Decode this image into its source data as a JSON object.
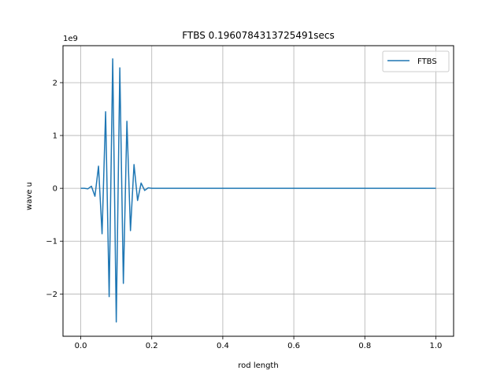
{
  "chart_data": {
    "type": "line",
    "title": "FTBS 0.1960784313725491secs",
    "xlabel": "rod length",
    "ylabel": "wave u",
    "y_offset_text": "1e9",
    "y_scale_factor": 1000000000.0,
    "xlim": [
      -0.05,
      1.05
    ],
    "ylim": [
      -2.8,
      2.7
    ],
    "x_ticks": [
      0.0,
      0.2,
      0.4,
      0.6,
      0.8,
      1.0
    ],
    "x_tick_labels": [
      "0.0",
      "0.2",
      "0.4",
      "0.6",
      "0.8",
      "1.0"
    ],
    "y_ticks": [
      -2,
      -1,
      0,
      1,
      2
    ],
    "y_tick_labels": [
      "−2",
      "−1",
      "0",
      "1",
      "2"
    ],
    "grid": true,
    "legend_position": "top-right",
    "series": [
      {
        "name": "FTBS",
        "color": "#1f77b4",
        "x": [
          0.0,
          0.01,
          0.02,
          0.03,
          0.04,
          0.05,
          0.06,
          0.07,
          0.08,
          0.09,
          0.1,
          0.11,
          0.12,
          0.13,
          0.14,
          0.15,
          0.16,
          0.17,
          0.18,
          0.19,
          0.2,
          1.0
        ],
        "y": [
          0.0,
          0.0,
          -0.01,
          0.04,
          -0.15,
          0.42,
          -0.86,
          1.45,
          -2.05,
          2.45,
          -2.53,
          2.28,
          -1.8,
          1.27,
          -0.8,
          0.45,
          -0.23,
          0.1,
          -0.04,
          0.01,
          0.0,
          0.0
        ]
      }
    ]
  }
}
